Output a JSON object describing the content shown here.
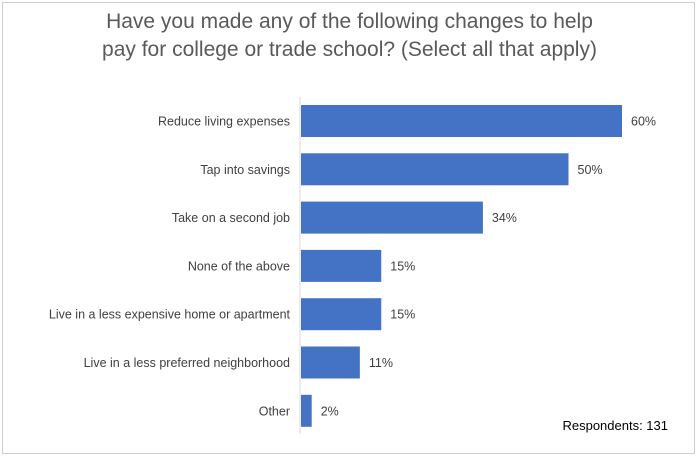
{
  "chart_data": {
    "type": "bar",
    "orientation": "horizontal",
    "title_lines": [
      "Have you made any of the following changes to help",
      "pay for college or trade school? (Select all that apply)"
    ],
    "categories": [
      "Reduce living expenses",
      "Tap into savings",
      "Take on a second job",
      "None of the above",
      "Live in a less expensive home or apartment",
      "Live in a less preferred neighborhood",
      "Other"
    ],
    "values": [
      60,
      50,
      34,
      15,
      15,
      11,
      2
    ],
    "value_labels": [
      "60%",
      "50%",
      "34%",
      "15%",
      "15%",
      "11%",
      "2%"
    ],
    "xlim": [
      0,
      60
    ],
    "bar_color": "#4472c4",
    "grid": false,
    "legend": "none"
  },
  "footnote": "Respondents: 131"
}
